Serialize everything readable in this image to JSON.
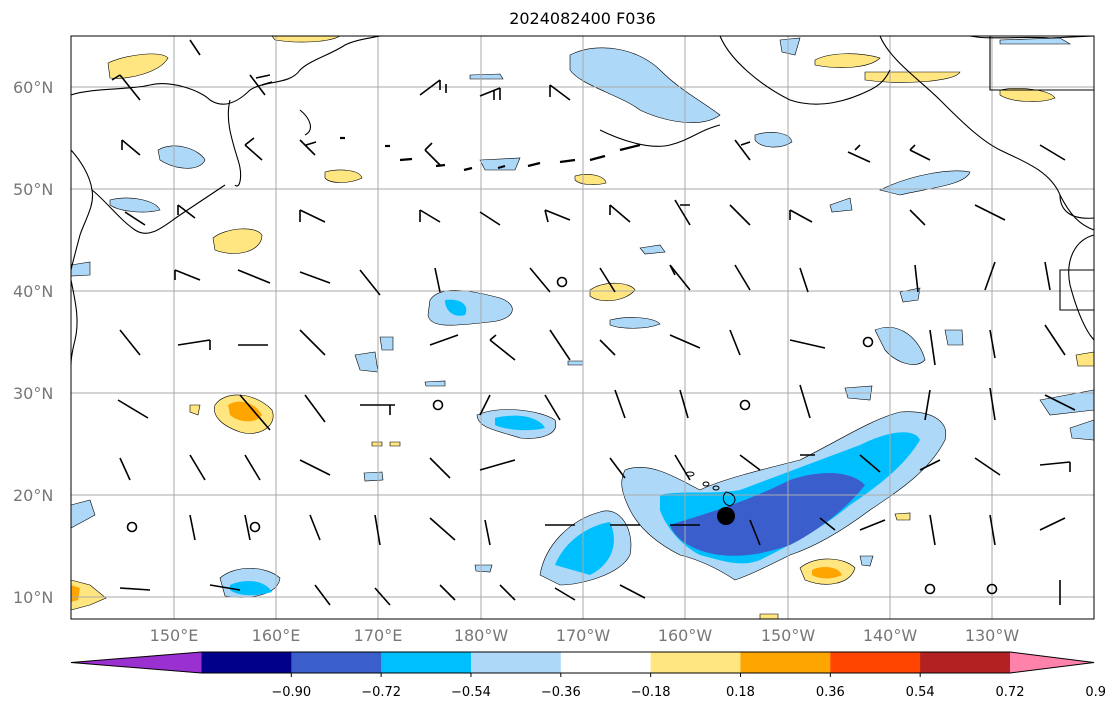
{
  "title": "2024082400 F036",
  "lat_labels": [
    "60°N",
    "50°N",
    "40°N",
    "30°N",
    "20°N",
    "10°N"
  ],
  "lon_labels": [
    "150°E",
    "160°E",
    "170°E",
    "180°W",
    "170°W",
    "160°W",
    "150°W",
    "140°W",
    "130°W"
  ],
  "colorbar": {
    "tick_labels": [
      "−0.90",
      "−0.72",
      "−0.54",
      "−0.36",
      "−0.18",
      "0.18",
      "0.36",
      "0.54",
      "0.72",
      "0.90"
    ],
    "colors": [
      "#9b30d0",
      "#00008b",
      "#3a5fcd",
      "#00bfff",
      "#add8f8",
      "#ffffff",
      "#ffe680",
      "#ffa500",
      "#ff4500",
      "#b22222",
      "#ff82ab"
    ]
  },
  "marker": {
    "label": "storm-center",
    "lon": -156,
    "lat": 18
  }
}
